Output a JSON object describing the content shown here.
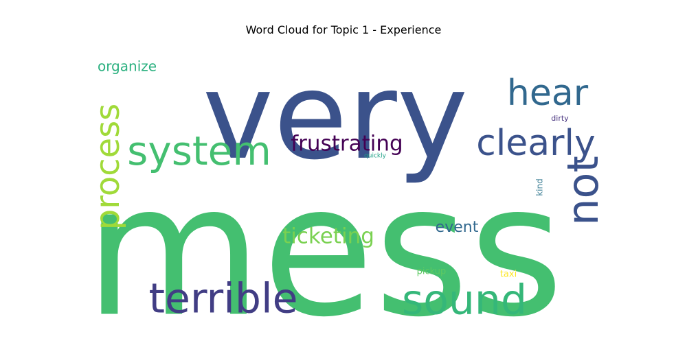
{
  "chart_data": {
    "type": "wordcloud",
    "title": "Word Cloud for Topic 1 - Experience",
    "words": [
      {
        "text": "mess",
        "color": "#44bf70"
      },
      {
        "text": "very",
        "color": "#3b528b"
      },
      {
        "text": "system",
        "color": "#44bf70"
      },
      {
        "text": "process",
        "color": "#a0da39"
      },
      {
        "text": "hear",
        "color": "#31688e"
      },
      {
        "text": "clearly",
        "color": "#3b528b"
      },
      {
        "text": "not",
        "color": "#3b528b"
      },
      {
        "text": "frustrating",
        "color": "#440154"
      },
      {
        "text": "terrible",
        "color": "#413d84"
      },
      {
        "text": "sound",
        "color": "#35b779"
      },
      {
        "text": "ticketing",
        "color": "#7ad151"
      },
      {
        "text": "event",
        "color": "#31688e"
      },
      {
        "text": "organize",
        "color": "#2ab07f"
      },
      {
        "text": "dirty",
        "color": "#46327e"
      },
      {
        "text": "quickly",
        "color": "#1fa187"
      },
      {
        "text": "kind",
        "color": "#3e7f95"
      },
      {
        "text": "pickup",
        "color": "#5ec962"
      },
      {
        "text": "taxi",
        "color": "#fde725"
      }
    ]
  }
}
